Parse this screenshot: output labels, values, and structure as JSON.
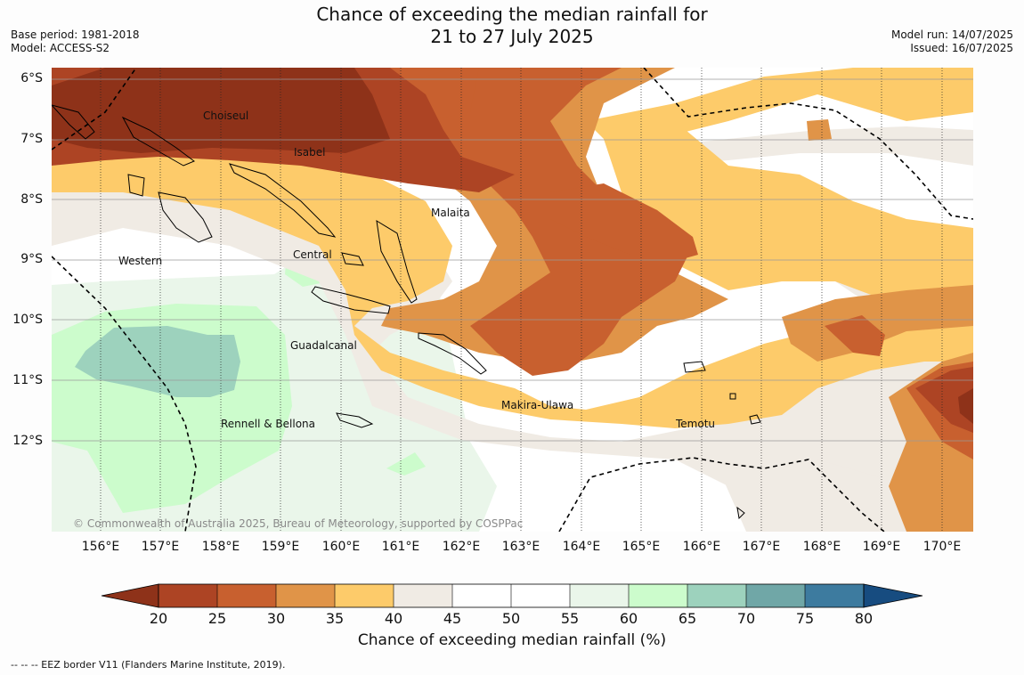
{
  "title": {
    "line1": "Chance of exceeding the median rainfall for",
    "line2": "21 to 27 July 2025"
  },
  "meta_left": {
    "base_period": "Base period: 1981-2018",
    "model": "Model: ACCESS-S2"
  },
  "meta_right": {
    "model_run": "Model run: 14/07/2025",
    "issued": "Issued: 16/07/2025"
  },
  "longitudes": [
    "156°E",
    "157°E",
    "158°E",
    "159°E",
    "160°E",
    "161°E",
    "162°E",
    "163°E",
    "164°E",
    "165°E",
    "166°E",
    "167°E",
    "168°E",
    "169°E",
    "170°E"
  ],
  "latitudes": [
    "6°S",
    "7°S",
    "8°S",
    "9°S",
    "10°S",
    "11°S",
    "12°S"
  ],
  "places": {
    "choiseul": "Choiseul",
    "isabel": "Isabel",
    "malaita": "Malaita",
    "western": "Western",
    "central": "Central",
    "guadalcanal": "Guadalcanal",
    "makira_ulawa": "Makira-Ulawa",
    "temotu": "Temotu",
    "rennell_bellona": "Rennell & Bellona"
  },
  "copyright": "© Commonwealth of Australia 2025, Bureau of Meteorology, supported by COSPPac",
  "colorbar": {
    "label": "Chance of exceeding median rainfall (%)",
    "ticks": [
      "20",
      "25",
      "30",
      "35",
      "40",
      "45",
      "50",
      "55",
      "60",
      "65",
      "70",
      "75",
      "80"
    ],
    "colors": {
      "below_20": "#8e3219",
      "c20_25": "#ad4424",
      "c25_30": "#c8602f",
      "c30_35": "#e09448",
      "c35_40": "#fdcb6a",
      "c40_45": "#f0ebe4",
      "c45_50": "#ffffff",
      "c50_55": "#ffffff",
      "c55_60": "#eaf6ea",
      "c60_65": "#ccfccc",
      "c65_70": "#9dd2bd",
      "c70_75": "#70a7a7",
      "c75_80": "#3d7b9f",
      "above_80": "#174c80"
    }
  },
  "legend_note": "-- -- -- EEZ border V11 (Flanders Marine Institute, 2019)."
}
